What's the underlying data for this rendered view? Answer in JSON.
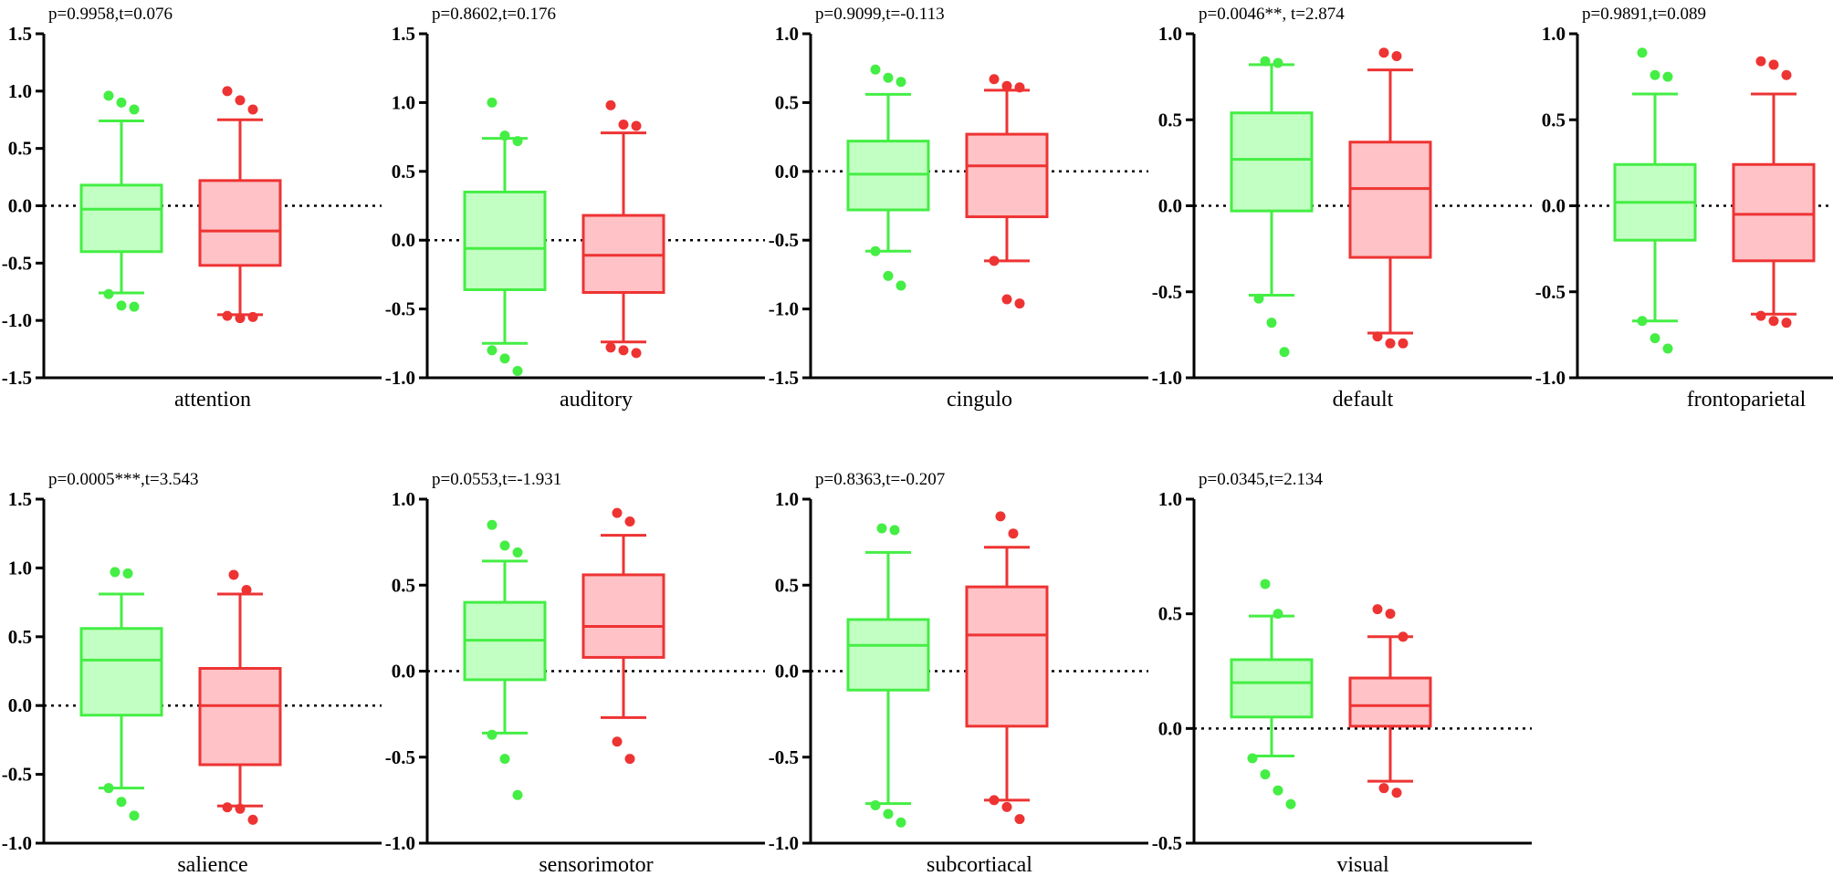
{
  "colors": {
    "group1_line": "#44ee44",
    "group1_fill": "#c2ffc2",
    "group2_line": "#ee3333",
    "group2_fill": "#ffc2c6"
  },
  "chart_data": [
    {
      "type": "box",
      "xlabel": "attention",
      "annotation": "p=0.9958,t=0.076",
      "ylim": [
        -1.5,
        1.5
      ],
      "ticks": [
        "-1.5",
        "-1.0",
        "-0.5",
        "0.0",
        "0.5",
        "1.0",
        "1.5"
      ],
      "ref_line": 0.0,
      "series": [
        {
          "whisker_low": -0.76,
          "q1": -0.4,
          "median": -0.03,
          "q3": 0.18,
          "whisker_high": 0.74,
          "outliers": [
            0.96,
            0.9,
            0.84,
            -0.77,
            -0.87,
            -0.88
          ]
        },
        {
          "whisker_low": -0.95,
          "q1": -0.52,
          "median": -0.22,
          "q3": 0.22,
          "whisker_high": 0.75,
          "outliers": [
            1.0,
            0.92,
            0.84,
            -0.96,
            -0.98,
            -0.97
          ]
        }
      ]
    },
    {
      "type": "box",
      "xlabel": "auditory",
      "annotation": "p=0.8602,t=0.176",
      "ylim": [
        -1.0,
        1.5
      ],
      "ticks": [
        "-1.0",
        "-0.5",
        "0.0",
        "0.5",
        "1.0",
        "1.5"
      ],
      "ref_line": 0.0,
      "series": [
        {
          "whisker_low": -0.75,
          "q1": -0.36,
          "median": -0.06,
          "q3": 0.35,
          "whisker_high": 0.74,
          "outliers": [
            1.0,
            0.76,
            0.72,
            -0.8,
            -0.86,
            -0.95
          ]
        },
        {
          "whisker_low": -0.74,
          "q1": -0.38,
          "median": -0.11,
          "q3": 0.18,
          "whisker_high": 0.78,
          "outliers": [
            0.98,
            0.84,
            0.83,
            -0.78,
            -0.8,
            -0.82
          ]
        }
      ]
    },
    {
      "type": "box",
      "xlabel": "cingulo",
      "annotation": "p=0.9099,t=-0.113",
      "ylim": [
        -1.5,
        1.0
      ],
      "ticks": [
        "-1.5",
        "-1.0",
        "-0.5",
        "0.0",
        "0.5",
        "1.0"
      ],
      "ref_line": 0.0,
      "series": [
        {
          "whisker_low": -0.58,
          "q1": -0.28,
          "median": -0.02,
          "q3": 0.22,
          "whisker_high": 0.56,
          "outliers": [
            0.74,
            0.68,
            0.65,
            -0.58,
            -0.76,
            -0.83
          ]
        },
        {
          "whisker_low": -0.65,
          "q1": -0.33,
          "median": 0.04,
          "q3": 0.27,
          "whisker_high": 0.59,
          "outliers": [
            0.67,
            0.62,
            0.61,
            -0.65,
            -0.93,
            -0.96
          ]
        }
      ]
    },
    {
      "type": "box",
      "xlabel": "default",
      "annotation": "p=0.0046**, t=2.874",
      "ylim": [
        -1.0,
        1.0
      ],
      "ticks": [
        "-1.0",
        "-0.5",
        "0.0",
        "0.5",
        "1.0"
      ],
      "ref_line": 0.0,
      "series": [
        {
          "whisker_low": -0.52,
          "q1": -0.03,
          "median": 0.27,
          "q3": 0.54,
          "whisker_high": 0.82,
          "outliers": [
            0.84,
            0.83,
            -0.54,
            -0.68,
            -0.85
          ]
        },
        {
          "whisker_low": -0.74,
          "q1": -0.3,
          "median": 0.1,
          "q3": 0.37,
          "whisker_high": 0.79,
          "outliers": [
            0.89,
            0.87,
            -0.76,
            -0.8,
            -0.8
          ]
        }
      ]
    },
    {
      "type": "box",
      "xlabel": "frontoparietal",
      "annotation": "p=0.9891,t=0.089",
      "ylim": [
        -1.0,
        1.0
      ],
      "ticks": [
        "-1.0",
        "-0.5",
        "0.0",
        "0.5",
        "1.0"
      ],
      "ref_line": 0.0,
      "series": [
        {
          "whisker_low": -0.67,
          "q1": -0.2,
          "median": 0.02,
          "q3": 0.24,
          "whisker_high": 0.65,
          "outliers": [
            0.89,
            0.76,
            0.75,
            -0.67,
            -0.77,
            -0.83
          ]
        },
        {
          "whisker_low": -0.63,
          "q1": -0.32,
          "median": -0.05,
          "q3": 0.24,
          "whisker_high": 0.65,
          "outliers": [
            0.84,
            0.82,
            0.76,
            -0.64,
            -0.67,
            -0.68
          ]
        }
      ]
    },
    {
      "type": "box",
      "xlabel": "salience",
      "annotation": "p=0.0005***,t=3.543",
      "ylim": [
        -1.0,
        1.5
      ],
      "ticks": [
        "-1.0",
        "-0.5",
        "0.0",
        "0.5",
        "1.0",
        "1.5"
      ],
      "ref_line": 0.0,
      "series": [
        {
          "whisker_low": -0.6,
          "q1": -0.07,
          "median": 0.33,
          "q3": 0.56,
          "whisker_high": 0.81,
          "outliers": [
            0.97,
            0.96,
            -0.6,
            -0.7,
            -0.8
          ]
        },
        {
          "whisker_low": -0.73,
          "q1": -0.43,
          "median": 0.0,
          "q3": 0.27,
          "whisker_high": 0.81,
          "outliers": [
            0.95,
            0.84,
            -0.74,
            -0.75,
            -0.83
          ]
        }
      ]
    },
    {
      "type": "box",
      "xlabel": "sensorimotor",
      "annotation": "p=0.0553,t=-1.931",
      "ylim": [
        -1.0,
        1.0
      ],
      "ticks": [
        "-1.0",
        "-0.5",
        "0.0",
        "0.5",
        "1.0"
      ],
      "ref_line": 0.0,
      "series": [
        {
          "whisker_low": -0.36,
          "q1": -0.05,
          "median": 0.18,
          "q3": 0.4,
          "whisker_high": 0.64,
          "outliers": [
            0.85,
            0.73,
            0.69,
            -0.37,
            -0.51,
            -0.72
          ]
        },
        {
          "whisker_low": -0.27,
          "q1": 0.08,
          "median": 0.26,
          "q3": 0.56,
          "whisker_high": 0.79,
          "outliers": [
            0.92,
            0.87,
            -0.41,
            -0.51
          ]
        }
      ]
    },
    {
      "type": "box",
      "xlabel": "subcortiacal",
      "annotation": "p=0.8363,t=-0.207",
      "ylim": [
        -1.0,
        1.0
      ],
      "ticks": [
        "-1.0",
        "-0.5",
        "0.0",
        "0.5",
        "1.0"
      ],
      "ref_line": 0.0,
      "series": [
        {
          "whisker_low": -0.77,
          "q1": -0.11,
          "median": 0.15,
          "q3": 0.3,
          "whisker_high": 0.69,
          "outliers": [
            0.83,
            0.82,
            -0.78,
            -0.83,
            -0.88
          ]
        },
        {
          "whisker_low": -0.75,
          "q1": -0.32,
          "median": 0.21,
          "q3": 0.49,
          "whisker_high": 0.72,
          "outliers": [
            0.9,
            0.8,
            -0.75,
            -0.79,
            -0.86
          ]
        }
      ]
    },
    {
      "type": "box",
      "xlabel": "visual",
      "annotation": "p=0.0345,t=2.134",
      "ylim": [
        -0.5,
        1.0
      ],
      "ticks": [
        "-0.5",
        "0.0",
        "0.5",
        "1.0"
      ],
      "ref_line": 0.0,
      "series": [
        {
          "whisker_low": -0.12,
          "q1": 0.05,
          "median": 0.2,
          "q3": 0.3,
          "whisker_high": 0.49,
          "outliers": [
            0.63,
            0.5,
            -0.13,
            -0.2,
            -0.27,
            -0.33
          ]
        },
        {
          "whisker_low": -0.23,
          "q1": 0.01,
          "median": 0.1,
          "q3": 0.22,
          "whisker_high": 0.4,
          "outliers": [
            0.52,
            0.5,
            0.4,
            -0.26,
            -0.28
          ]
        }
      ]
    }
  ]
}
